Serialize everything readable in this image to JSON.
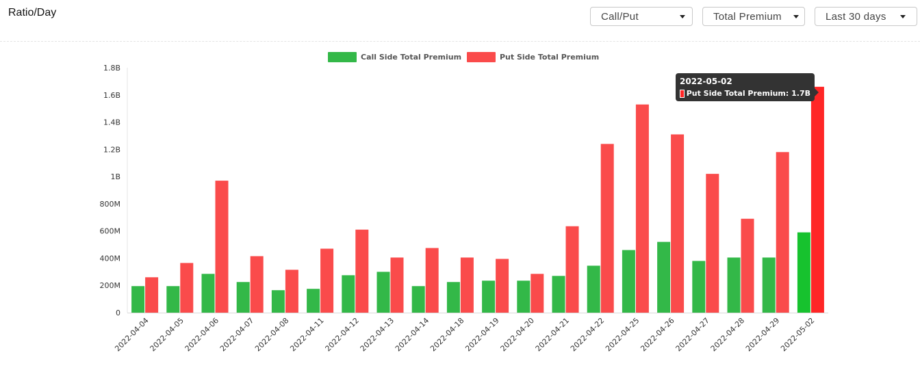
{
  "header": {
    "title": "Ratio/Day",
    "dropdowns": {
      "ratio": "Call/Put",
      "metric": "Total Premium",
      "period": "Last 30 days"
    }
  },
  "colors": {
    "call": "#33b848",
    "put": "#fa4b4b",
    "call_highlight": "#17c22e",
    "put_highlight": "#ff2626"
  },
  "tooltip": {
    "date": "2022-05-02",
    "label": "Put Side Total Premium: 1.7B"
  },
  "chart_data": {
    "type": "bar",
    "title": "",
    "xlabel": "",
    "ylabel": "",
    "ylim": [
      0,
      1800000000
    ],
    "yticks": [
      {
        "value": 0,
        "label": "0"
      },
      {
        "value": 200000000,
        "label": "200M"
      },
      {
        "value": 400000000,
        "label": "400M"
      },
      {
        "value": 600000000,
        "label": "600M"
      },
      {
        "value": 800000000,
        "label": "800M"
      },
      {
        "value": 1000000000,
        "label": "1B"
      },
      {
        "value": 1200000000,
        "label": "1.2B"
      },
      {
        "value": 1400000000,
        "label": "1.4B"
      },
      {
        "value": 1600000000,
        "label": "1.6B"
      },
      {
        "value": 1800000000,
        "label": "1.8B"
      }
    ],
    "legend_position": "top-center",
    "categories": [
      "2022-04-04",
      "2022-04-05",
      "2022-04-06",
      "2022-04-07",
      "2022-04-08",
      "2022-04-11",
      "2022-04-12",
      "2022-04-13",
      "2022-04-14",
      "2022-04-18",
      "2022-04-19",
      "2022-04-20",
      "2022-04-21",
      "2022-04-22",
      "2022-04-25",
      "2022-04-26",
      "2022-04-27",
      "2022-04-28",
      "2022-04-29",
      "2022-05-02"
    ],
    "series": [
      {
        "name": "Call Side Total Premium",
        "values": [
          195000000,
          195000000,
          285000000,
          225000000,
          165000000,
          175000000,
          275000000,
          300000000,
          195000000,
          225000000,
          235000000,
          235000000,
          270000000,
          345000000,
          460000000,
          520000000,
          380000000,
          405000000,
          405000000,
          590000000
        ]
      },
      {
        "name": "Put Side Total Premium",
        "values": [
          260000000,
          365000000,
          970000000,
          415000000,
          315000000,
          470000000,
          610000000,
          405000000,
          475000000,
          405000000,
          395000000,
          285000000,
          635000000,
          1240000000,
          1530000000,
          1310000000,
          1020000000,
          690000000,
          1180000000,
          1660000000
        ]
      }
    ],
    "highlighted_index": 19
  }
}
